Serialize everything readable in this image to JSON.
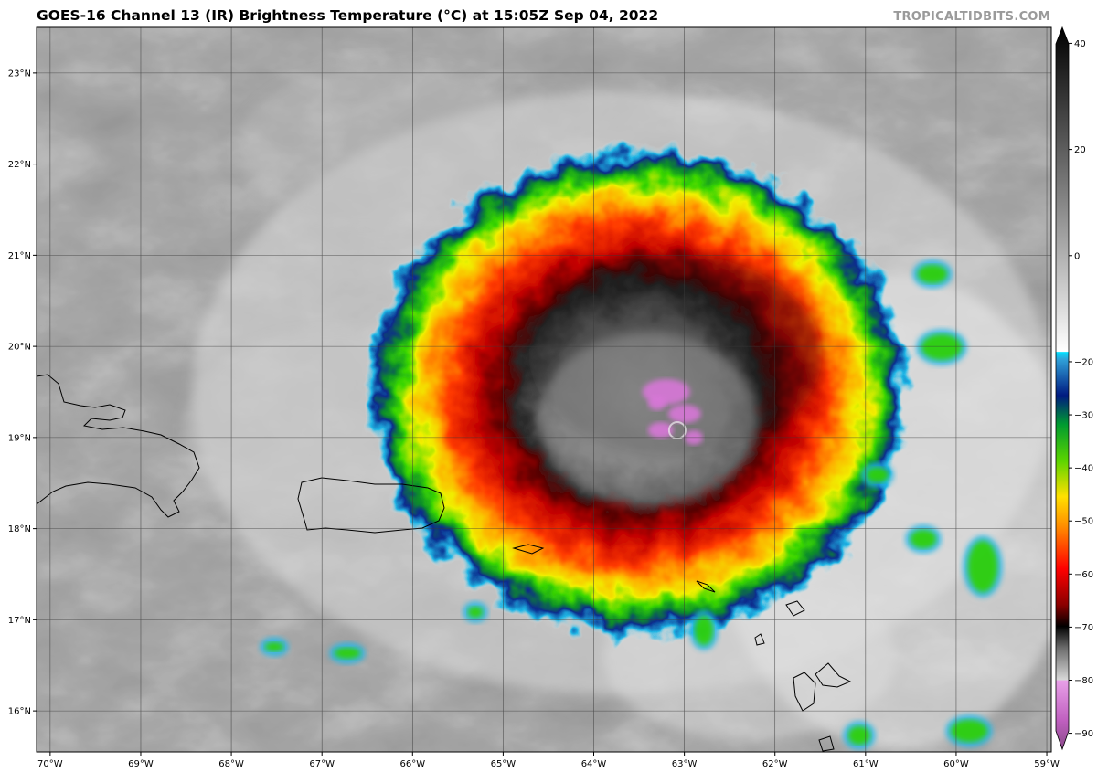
{
  "title": "GOES-16 Channel 13 (IR) Brightness Temperature (°C) at 15:05Z Sep 04, 2022",
  "watermark": "TROPICALTIDBITS.COM",
  "map": {
    "lon_range": [
      -70.15,
      -58.95
    ],
    "lat_range": [
      15.55,
      23.5
    ],
    "lon_ticks": [
      {
        "value": -70,
        "label": "70°W"
      },
      {
        "value": -69,
        "label": "69°W"
      },
      {
        "value": -68,
        "label": "68°W"
      },
      {
        "value": -67,
        "label": "67°W"
      },
      {
        "value": -66,
        "label": "66°W"
      },
      {
        "value": -65,
        "label": "65°W"
      },
      {
        "value": -64,
        "label": "64°W"
      },
      {
        "value": -63,
        "label": "63°W"
      },
      {
        "value": -62,
        "label": "62°W"
      },
      {
        "value": -61,
        "label": "61°W"
      },
      {
        "value": -60,
        "label": "60°W"
      },
      {
        "value": -59,
        "label": "59°W"
      }
    ],
    "lat_ticks": [
      {
        "value": 16,
        "label": "16°N"
      },
      {
        "value": 17,
        "label": "17°N"
      },
      {
        "value": 18,
        "label": "18°N"
      },
      {
        "value": 19,
        "label": "19°N"
      },
      {
        "value": 20,
        "label": "20°N"
      },
      {
        "value": 21,
        "label": "21°N"
      },
      {
        "value": 22,
        "label": "22°N"
      },
      {
        "value": 23,
        "label": "23°N"
      }
    ],
    "storm_center": {
      "lon": -63.3,
      "lat": 19.3
    },
    "colors": {
      "background_cloud": "#707070",
      "coastline": "#000000",
      "gridline": "#3a3a3a"
    }
  },
  "colorbar": {
    "range": [
      -93,
      43
    ],
    "ticks": [
      {
        "value": 40,
        "label": "40"
      },
      {
        "value": 20,
        "label": "20"
      },
      {
        "value": 0,
        "label": "0"
      },
      {
        "value": -20,
        "label": "−20"
      },
      {
        "value": -30,
        "label": "−30"
      },
      {
        "value": -40,
        "label": "−40"
      },
      {
        "value": -50,
        "label": "−50"
      },
      {
        "value": -60,
        "label": "−60"
      },
      {
        "value": -70,
        "label": "−70"
      },
      {
        "value": -80,
        "label": "−80"
      },
      {
        "value": -90,
        "label": "−90"
      }
    ]
  }
}
